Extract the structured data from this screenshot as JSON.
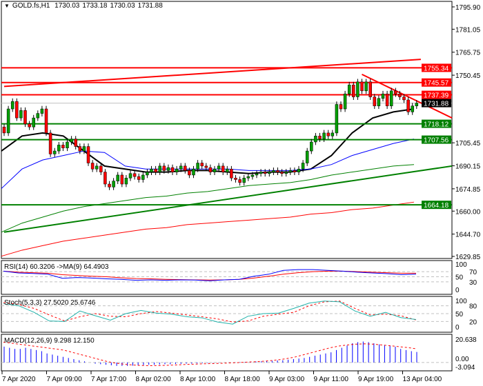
{
  "header": {
    "triangle": "▼",
    "symbol": "GOLD.fs,H1",
    "open": "1730.03",
    "high": "1733.18",
    "low": "1730.03",
    "close": "1731.88"
  },
  "colors": {
    "bull": "#00a000",
    "bear": "#ff0000",
    "ma20": "#000000",
    "ma50": "#0000ff",
    "ma100": "#008000",
    "ma200": "#ff0000",
    "resistance": "#ff0000",
    "support": "#008000",
    "rsi": "#0000ff",
    "rsi_ma": "#ff0000",
    "stoch_main": "#20b2aa",
    "stoch_signal": "#ff0000",
    "macd_hist": "#0000ff",
    "macd_signal": "#ff0000"
  },
  "price_axis": {
    "ticks": [
      "1795.90",
      "1781.05",
      "1765.75",
      "1750.45",
      "1705.45",
      "1690.15",
      "1674.85",
      "1660.00",
      "1644.70",
      "1629.85"
    ],
    "tick_values": [
      1795.9,
      1781.05,
      1765.75,
      1750.45,
      1705.45,
      1690.15,
      1674.85,
      1660.0,
      1644.7,
      1629.85
    ],
    "range": [
      1629.85,
      1795.9
    ]
  },
  "levels": [
    {
      "label": "1755.34",
      "value": 1755.34,
      "type": "resistance"
    },
    {
      "label": "1745.57",
      "value": 1745.57,
      "type": "resistance"
    },
    {
      "label": "1737.39",
      "value": 1737.39,
      "type": "resistance"
    },
    {
      "label": "1718.12",
      "value": 1718.12,
      "type": "support"
    },
    {
      "label": "1707.56",
      "value": 1707.56,
      "type": "support"
    },
    {
      "label": "1664.18",
      "value": 1664.18,
      "type": "support"
    }
  ],
  "current_price": {
    "label": "1731.88",
    "value": 1731.88
  },
  "trendlines": [
    {
      "type": "resistance",
      "from": [
        0,
        1743
      ],
      "to": [
        99,
        1761
      ]
    },
    {
      "type": "resistance",
      "from": [
        85,
        1751
      ],
      "to": [
        107,
        1722
      ]
    },
    {
      "type": "support",
      "from": [
        0,
        1646
      ],
      "to": [
        107,
        1690
      ]
    }
  ],
  "closes": [
    1712,
    1728,
    1733,
    1722,
    1727,
    1718,
    1716,
    1722,
    1725,
    1728,
    1712,
    1698,
    1700,
    1704,
    1702,
    1706,
    1708,
    1703,
    1700,
    1703,
    1692,
    1688,
    1690,
    1686,
    1678,
    1676,
    1680,
    1684,
    1678,
    1682,
    1685,
    1683,
    1681,
    1684,
    1686,
    1688,
    1686,
    1690,
    1687,
    1689,
    1686,
    1688,
    1690,
    1687,
    1684,
    1688,
    1692,
    1690,
    1689,
    1686,
    1688,
    1690,
    1686,
    1688,
    1682,
    1681,
    1679,
    1682,
    1683,
    1684,
    1685,
    1686,
    1685,
    1686,
    1687,
    1686,
    1685,
    1686,
    1687,
    1686,
    1688,
    1692,
    1700,
    1706,
    1710,
    1708,
    1712,
    1710,
    1712,
    1731,
    1728,
    1738,
    1744,
    1736,
    1746,
    1740,
    1746,
    1736,
    1730,
    1735,
    1738,
    1730,
    1740,
    1738,
    1736,
    1734,
    1726,
    1730,
    1731.88
  ],
  "first_open": 1716,
  "moving_averages": [
    {
      "name": "ma20",
      "values": [
        1700,
        1710,
        1712,
        1710,
        1700,
        1690,
        1688,
        1686,
        1686,
        1687,
        1687,
        1686,
        1685,
        1686,
        1686,
        1688,
        1697,
        1712,
        1722,
        1726,
        1728
      ]
    },
    {
      "name": "ma50",
      "values": [
        1675,
        1688,
        1694,
        1697,
        1700,
        1699,
        1690,
        1688,
        1688,
        1688,
        1688,
        1688,
        1687,
        1687,
        1687,
        1688,
        1691,
        1697,
        1701,
        1705,
        1708
      ]
    },
    {
      "name": "ma100",
      "values": [
        1646,
        1652,
        1656,
        1660,
        1663,
        1665,
        1667,
        1669,
        1670,
        1672,
        1673,
        1675,
        1677,
        1678,
        1679,
        1681,
        1684,
        1686,
        1688,
        1690,
        1691
      ]
    },
    {
      "name": "ma200",
      "values": [
        1630,
        1634,
        1637,
        1640,
        1642,
        1644,
        1646,
        1648,
        1649,
        1651,
        1652,
        1653,
        1654,
        1655,
        1656,
        1658,
        1659,
        1661,
        1662,
        1664,
        1666
      ]
    }
  ],
  "rsi": {
    "label": "RSI(14) 60.3206  ->MA(9) 64.4903",
    "ticks": [
      "100",
      "70",
      "50",
      "30",
      "0"
    ],
    "tick_values": [
      100,
      70,
      50,
      30,
      0
    ],
    "values": [
      72,
      65,
      63,
      60,
      44,
      47,
      45,
      42,
      40,
      36,
      38,
      36,
      38,
      37,
      34,
      38,
      40,
      52,
      60,
      75,
      78,
      78,
      75,
      72,
      68,
      65,
      62,
      58,
      60
    ],
    "ma": [
      72,
      68,
      66,
      64,
      58,
      55,
      52,
      50,
      46,
      43,
      42,
      40,
      39,
      38,
      37,
      38,
      40,
      45,
      52,
      60,
      66,
      70,
      72,
      72,
      70,
      68,
      66,
      64,
      64
    ]
  },
  "stoch": {
    "label": "Stoch(5,3,3) 27.5020 25.6746",
    "ticks": [
      "100",
      "80",
      "50",
      "20",
      "0"
    ],
    "tick_values": [
      100,
      80,
      50,
      20,
      0
    ],
    "main": [
      88,
      80,
      55,
      22,
      20,
      60,
      42,
      25,
      50,
      62,
      52,
      48,
      38,
      34,
      18,
      10,
      40,
      50,
      52,
      70,
      90,
      98,
      95,
      60,
      40,
      55,
      35,
      27.5
    ],
    "signal": [
      92,
      85,
      70,
      45,
      22,
      38,
      50,
      40,
      38,
      50,
      58,
      52,
      45,
      38,
      30,
      18,
      22,
      40,
      48,
      55,
      80,
      95,
      98,
      70,
      45,
      48,
      42,
      25.7
    ]
  },
  "macd": {
    "label": "MACD(12,26,9) 9.298 12.150",
    "ticks": [
      "20.638",
      "0.00",
      "-3.094"
    ],
    "range": [
      -3.094,
      20.638
    ],
    "hist": [
      14,
      13,
      12,
      12,
      13,
      12,
      11,
      10,
      8,
      7,
      6,
      5,
      4,
      3,
      2,
      1,
      0,
      -1,
      -1.5,
      -2,
      -2.5,
      -3,
      -3,
      -3,
      -2.8,
      -2.5,
      -2.2,
      -2,
      -2,
      -1.8,
      -1.5,
      -1.5,
      -1.3,
      -1.2,
      -1,
      -1,
      -0.8,
      -0.6,
      -0.5,
      -0.3,
      -0.2,
      0,
      0.1,
      0.2,
      0.3,
      0.5,
      0.6,
      0.8,
      1,
      1.3,
      1.5,
      1.8,
      2,
      2.5,
      3,
      3.5,
      4,
      5,
      6,
      7,
      8,
      9,
      11,
      13,
      15,
      17,
      18,
      18.5,
      18,
      17,
      16,
      15.5,
      15,
      14,
      12,
      11,
      10,
      9.3
    ],
    "signal": [
      18,
      17,
      16,
      15,
      14,
      13,
      12,
      11,
      9,
      7,
      5,
      3,
      1,
      -0.5,
      -1.5,
      -2.2,
      -2.6,
      -2.8,
      -2.7,
      -2.5,
      -2.2,
      -1.8,
      -1.5,
      -1.2,
      -1,
      -0.8,
      -0.5,
      -0.2,
      0.2,
      0.6,
      1,
      1.6,
      2.4,
      3.5,
      5,
      7,
      9,
      11,
      13,
      14.5,
      15.5,
      16.2,
      16.5,
      16.2,
      15.5,
      14.8,
      14,
      13.2,
      12.15
    ]
  },
  "time_axis": {
    "labels": [
      "7 Apr 2020",
      "7 Apr 09:00",
      "7 Apr 17:00",
      "8 Apr 02:00",
      "8 Apr 10:00",
      "8 Apr 18:00",
      "9 Apr 03:00",
      "9 Apr 11:00",
      "9 Apr 19:00",
      "13 Apr 04:00"
    ]
  }
}
